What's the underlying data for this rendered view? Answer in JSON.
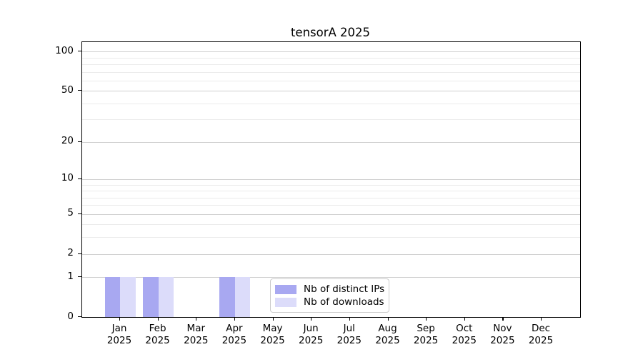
{
  "chart_data": {
    "type": "bar",
    "title": "tensorA 2025",
    "categories": [
      "Jan 2025",
      "Feb 2025",
      "Mar 2025",
      "Apr 2025",
      "May 2025",
      "Jun 2025",
      "Jul 2025",
      "Aug 2025",
      "Sep 2025",
      "Oct 2025",
      "Nov 2025",
      "Dec 2025"
    ],
    "series": [
      {
        "name": "Nb of distinct IPs",
        "color": "#a8a8f1",
        "values": [
          1,
          1,
          0,
          1,
          0,
          0,
          0,
          0,
          0,
          0,
          0,
          0
        ]
      },
      {
        "name": "Nb of downloads",
        "color": "#dcdcfa",
        "values": [
          1,
          1,
          0,
          1,
          0,
          0,
          0,
          0,
          0,
          0,
          0,
          0
        ]
      }
    ],
    "yscale": "log1p",
    "ylim": [
      0,
      116
    ],
    "ytick_labels": [
      "0",
      "1",
      "2",
      "5",
      "10",
      "20",
      "50",
      "100"
    ],
    "yticks_major": [
      0,
      1,
      2,
      5,
      10,
      20,
      50,
      100
    ],
    "yticks_minor": [
      3,
      4,
      6,
      7,
      8,
      9,
      30,
      40,
      60,
      70,
      80,
      90
    ],
    "grid": "horizontal",
    "legend_position": "lower center-left inside plot",
    "xlabel": "",
    "ylabel": ""
  },
  "legend": {
    "item1": "Nb of distinct IPs",
    "item2": "Nb of downloads"
  },
  "colors": {
    "bar_dark": "#a8a8f1",
    "bar_light": "#dcdcfa",
    "grid_major": "#cfcfcf",
    "grid_minor": "#ebebeb",
    "axis": "#000000",
    "background": "#ffffff"
  }
}
